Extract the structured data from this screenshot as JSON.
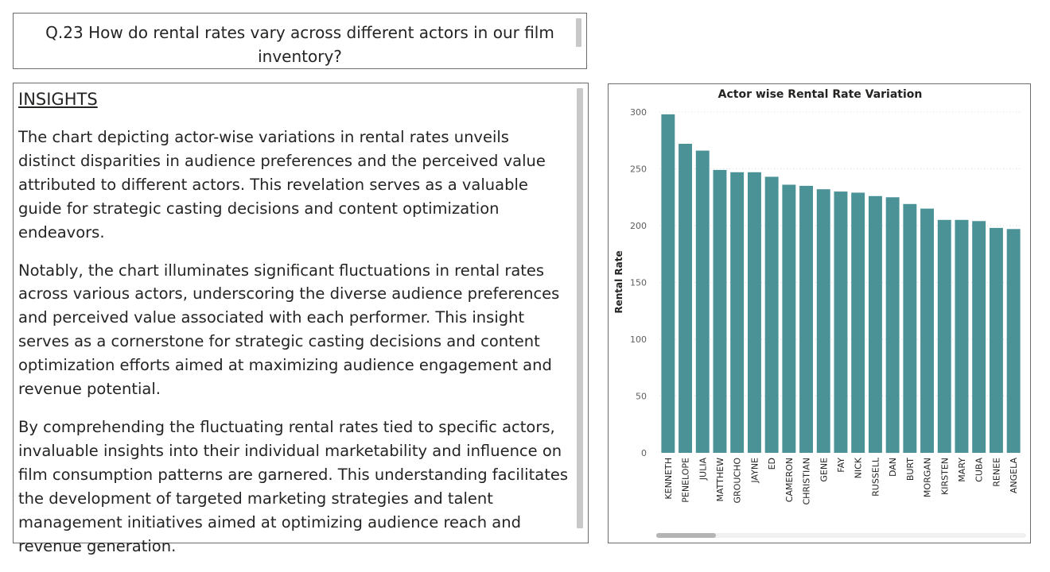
{
  "question": {
    "text": "Q.23 How do rental rates vary across different actors in our film inventory?"
  },
  "insights": {
    "heading": "INSIGHTS",
    "paragraphs": [
      "The chart depicting actor-wise variations in rental rates unveils distinct disparities in audience preferences and the perceived value attributed to different actors. This revelation serves as a valuable guide for strategic casting decisions and content optimization endeavors.",
      "Notably, the chart illuminates significant fluctuations in rental rates across various actors, underscoring the diverse audience preferences and perceived value associated with each performer. This insight serves as a cornerstone for strategic casting decisions and content optimization efforts aimed at maximizing audience engagement and revenue potential.",
      "By comprehending the fluctuating rental rates tied to specific actors, invaluable insights into their individual marketability and influence on film consumption patterns are garnered. This understanding facilitates the development of targeted marketing strategies and talent management initiatives aimed at optimizing audience reach and revenue generation."
    ]
  },
  "colors": {
    "bar": "#4a9296",
    "grid": "#d9d9d9"
  },
  "chart_data": {
    "type": "bar",
    "title": "Actor wise Rental Rate Variation",
    "xlabel": "",
    "ylabel": "Rental Rate",
    "ylim": [
      0,
      300
    ],
    "yticks": [
      0,
      50,
      100,
      150,
      200,
      250,
      300
    ],
    "grid": true,
    "categories": [
      "KENNETH",
      "PENELOPE",
      "JULIA",
      "MATTHEW",
      "GROUCHO",
      "JAYNE",
      "ED",
      "CAMERON",
      "CHRISTIAN",
      "GENE",
      "FAY",
      "NICK",
      "RUSSELL",
      "DAN",
      "BURT",
      "MORGAN",
      "KIRSTEN",
      "MARY",
      "CUBA",
      "RENEE",
      "ANGELA"
    ],
    "values": [
      298,
      272,
      266,
      249,
      247,
      247,
      243,
      236,
      235,
      232,
      230,
      229,
      226,
      225,
      219,
      215,
      205,
      205,
      204,
      198,
      197
    ]
  }
}
